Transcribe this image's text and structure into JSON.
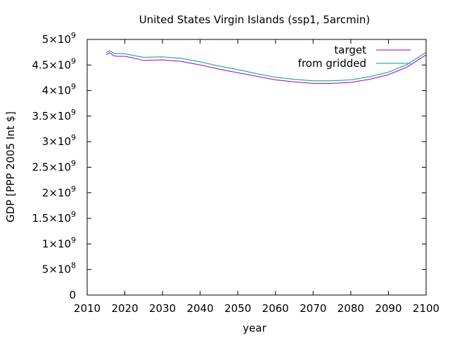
{
  "chart_data": {
    "type": "line",
    "title": "United States Virgin Islands (ssp1, 5arcmin)",
    "xlabel": "year",
    "ylabel": "GDP [PPP 2005 Int $]",
    "xlim": [
      2010,
      2100
    ],
    "ylim": [
      0,
      5000000000
    ],
    "xticks": [
      2010,
      2020,
      2030,
      2040,
      2050,
      2060,
      2070,
      2080,
      2090,
      2100
    ],
    "yticks": [
      {
        "value": 0,
        "mant": "0",
        "exp": ""
      },
      {
        "value": 500000000,
        "mant": "5×10",
        "exp": "8"
      },
      {
        "value": 1000000000,
        "mant": "1×10",
        "exp": "9"
      },
      {
        "value": 1500000000,
        "mant": "1.5×10",
        "exp": "9"
      },
      {
        "value": 2000000000,
        "mant": "2×10",
        "exp": "9"
      },
      {
        "value": 2500000000,
        "mant": "2.5×10",
        "exp": "9"
      },
      {
        "value": 3000000000,
        "mant": "3×10",
        "exp": "9"
      },
      {
        "value": 3500000000,
        "mant": "3.5×10",
        "exp": "9"
      },
      {
        "value": 4000000000,
        "mant": "4×10",
        "exp": "9"
      },
      {
        "value": 4500000000,
        "mant": "4.5×10",
        "exp": "9"
      },
      {
        "value": 5000000000,
        "mant": "5×10",
        "exp": "9"
      }
    ],
    "grid": false,
    "legend_position": "top-right",
    "series": [
      {
        "name": "target",
        "color": "#9400d3",
        "x": [
          2015,
          2016,
          2017,
          2018,
          2020,
          2022,
          2025,
          2030,
          2035,
          2040,
          2045,
          2050,
          2055,
          2060,
          2065,
          2070,
          2075,
          2080,
          2085,
          2090,
          2095,
          2100
        ],
        "y": [
          4700000000,
          4740000000,
          4680000000,
          4670000000,
          4670000000,
          4640000000,
          4590000000,
          4600000000,
          4570000000,
          4500000000,
          4420000000,
          4350000000,
          4280000000,
          4210000000,
          4170000000,
          4140000000,
          4140000000,
          4160000000,
          4220000000,
          4310000000,
          4460000000,
          4700000000
        ]
      },
      {
        "name": "from gridded",
        "color": "#009e73",
        "x": [
          2015,
          2016,
          2017,
          2018,
          2020,
          2022,
          2025,
          2030,
          2035,
          2040,
          2045,
          2050,
          2055,
          2060,
          2065,
          2070,
          2075,
          2080,
          2085,
          2090,
          2095,
          2100
        ],
        "y": [
          4740000000,
          4780000000,
          4730000000,
          4720000000,
          4720000000,
          4690000000,
          4650000000,
          4660000000,
          4630000000,
          4560000000,
          4480000000,
          4410000000,
          4330000000,
          4260000000,
          4220000000,
          4190000000,
          4190000000,
          4210000000,
          4270000000,
          4360000000,
          4510000000,
          4750000000
        ]
      }
    ]
  }
}
